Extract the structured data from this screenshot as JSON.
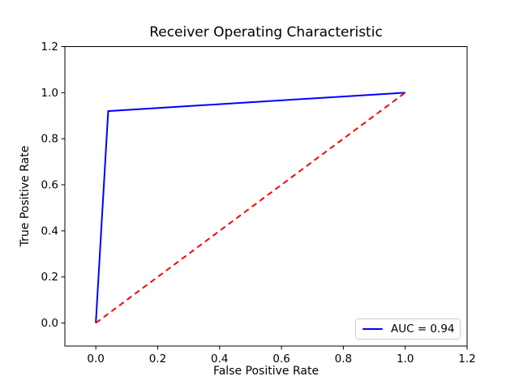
{
  "chart_data": {
    "type": "line",
    "title": "Receiver Operating Characteristic",
    "xlabel": "False Positive Rate",
    "ylabel": "True Positive Rate",
    "xlim": [
      -0.1,
      1.2
    ],
    "ylim": [
      -0.1,
      1.2
    ],
    "xticks": [
      0.0,
      0.2,
      0.4,
      0.6,
      0.8,
      1.0,
      1.2
    ],
    "yticks": [
      0.0,
      0.2,
      0.4,
      0.6,
      0.8,
      1.0,
      1.2
    ],
    "grid": false,
    "legend": {
      "position": "lower right",
      "entries": [
        "AUC = 0.94"
      ]
    },
    "series": [
      {
        "id": "roc-curve",
        "name": "AUC = 0.94",
        "color": "#0000ff",
        "style": "solid",
        "in_legend": true,
        "x": [
          0.0,
          0.04,
          1.0
        ],
        "y": [
          0.0,
          0.92,
          1.0
        ]
      },
      {
        "id": "chance-diagonal",
        "name": "chance diagonal",
        "color": "#ff0000",
        "style": "dashed",
        "in_legend": false,
        "x": [
          0.0,
          1.0
        ],
        "y": [
          0.0,
          1.0
        ]
      }
    ],
    "auc_value": 0.94
  },
  "colors": {
    "axes": "#000000",
    "text": "#000000",
    "legend_border": "#cccccc",
    "background": "#ffffff"
  }
}
